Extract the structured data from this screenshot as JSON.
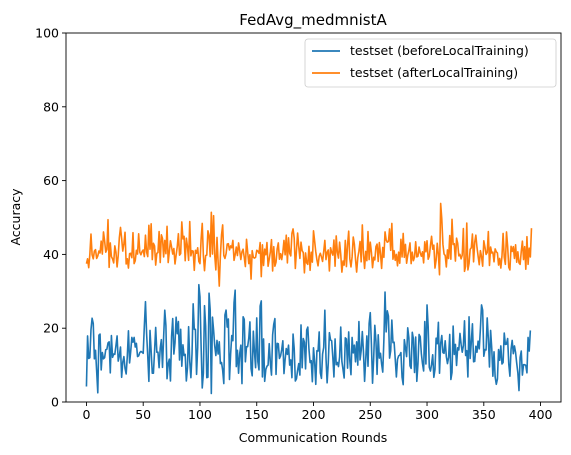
{
  "chart_data": {
    "type": "line",
    "title": "FedAvg_medmnistA",
    "xlabel": "Communication Rounds",
    "ylabel": "Accuracy",
    "xlim": [
      -18,
      418
    ],
    "ylim": [
      0,
      100
    ],
    "xticks": [
      0,
      50,
      100,
      150,
      200,
      250,
      300,
      350,
      400
    ],
    "yticks": [
      0,
      20,
      40,
      60,
      80,
      100
    ],
    "grid": false,
    "legend_position": "top-right",
    "colors": {
      "series_0": "#1f77b4",
      "series_1": "#ff7f0e",
      "axis": "#000000",
      "legend_border": "#cccccc"
    },
    "series": [
      {
        "name": "testset (beforeLocalTraining)",
        "x_start": 0,
        "x_step": 1,
        "values": [
          4.2,
          17.9,
          11.8,
          12.0,
          19.6,
          22.7,
          21.3,
          11.7,
          14.0,
          8.4,
          2.5,
          18.1,
          18.4,
          8.7,
          13.4,
          11.7,
          12.0,
          14.2,
          14.3,
          16.0,
          16.3,
          7.9,
          18.0,
          12.1,
          13.0,
          12.9,
          15.3,
          17.9,
          11.1,
          12.5,
          14.9,
          6.7,
          10.8,
          12.3,
          9.1,
          7.6,
          12.4,
          19.3,
          10.6,
          13.7,
          17.5,
          16.2,
          17.5,
          14.9,
          15.9,
          12.3,
          12.5,
          13.4,
          13.7,
          13.5,
          13.2,
          20.6,
          27.2,
          18.5,
          12.5,
          5.6,
          19.4,
          13.8,
          7.8,
          7.8,
          13.8,
          20.2,
          13.5,
          13.5,
          9.3,
          14.6,
          16.9,
          9.4,
          17.7,
          24.9,
          20.7,
          6.3,
          10.4,
          11.6,
          5.7,
          17.8,
          22.6,
          13.0,
          16.0,
          23.0,
          18.5,
          21.8,
          11.4,
          19.7,
          9.7,
          15.5,
          12.6,
          12.9,
          5.7,
          9.3,
          20.4,
          11.0,
          6.6,
          13.1,
          26.6,
          19.7,
          19.7,
          7.5,
          14.8,
          31.8,
          28.5,
          15.2,
          3.8,
          7.8,
          26.1,
          20.6,
          6.6,
          6.7,
          29.5,
          25.0,
          2.3,
          23.0,
          19.5,
          15.2,
          12.6,
          16.7,
          13.0,
          16.3,
          10.4,
          10.7,
          8.6,
          5.0,
          23.6,
          24.9,
          20.3,
          22.5,
          6.1,
          13.0,
          18.0,
          16.6,
          26.9,
          30.3,
          9.6,
          14.0,
          7.8,
          13.1,
          15.4,
          5.0,
          23.1,
          22.4,
          10.9,
          15.0,
          15.0,
          17.3,
          21.7,
          9.0,
          7.1,
          19.2,
          13.6,
          9.3,
          22.8,
          10.9,
          8.7,
          26.0,
          27.4,
          6.8,
          17.1,
          5.6,
          8.8,
          9.7,
          10.0,
          15.8,
          10.6,
          7.3,
          18.2,
          21.1,
          22.6,
          7.5,
          15.9,
          15.8,
          11.8,
          12.5,
          14.2,
          16.6,
          7.7,
          11.5,
          14.5,
          12.9,
          15.4,
          10.0,
          11.4,
          6.6,
          18.4,
          14.5,
          5.7,
          6.3,
          8.6,
          10.4,
          7.3,
          20.9,
          9.3,
          17.2,
          16.2,
          9.0,
          19.5,
          20.3,
          14.3,
          10.7,
          11.2,
          5.5,
          14.7,
          10.9,
          4.8,
          13.9,
          13.8,
          19.0,
          7.9,
          6.4,
          13.0,
          14.8,
          24.9,
          12.0,
          5.2,
          10.5,
          18.8,
          16.8,
          16.6,
          12.2,
          6.8,
          17.1,
          10.1,
          10.7,
          9.6,
          12.2,
          20.3,
          11.0,
          8.8,
          6.5,
          17.4,
          17.1,
          9.2,
          19.0,
          11.1,
          7.4,
          17.5,
          13.3,
          15.4,
          10.9,
          16.3,
          10.0,
          21.8,
          11.4,
          13.9,
          19.1,
          13.7,
          5.6,
          11.5,
          17.9,
          9.7,
          21.3,
          24.2,
          15.8,
          5.1,
          11.8,
          20.8,
          16.6,
          7.5,
          18.2,
          11.9,
          13.2,
          10.3,
          8.1,
          16.9,
          29.8,
          19.0,
          24.7,
          23.3,
          11.9,
          13.9,
          22.2,
          16.1,
          16.2,
          11.6,
          6.8,
          11.6,
          12.5,
          12.7,
          13.4,
          6.7,
          4.7,
          16.9,
          14.7,
          12.3,
          20.1,
          17.4,
          9.8,
          9.1,
          18.9,
          17.1,
          8.0,
          17.6,
          5.6,
          10.3,
          18.3,
          17.7,
          13.1,
          10.4,
          8.4,
          21.8,
          10.3,
          26.3,
          20.4,
          9.4,
          8.4,
          10.2,
          12.8,
          6.7,
          8.8,
          17.3,
          15.8,
          21.6,
          7.8,
          15.9,
          18.0,
          13.4,
          13.2,
          16.6,
          12.3,
          10.4,
          12.1,
          18.3,
          6.1,
          8.0,
          20.6,
          12.9,
          15.6,
          9.9,
          14.7,
          14.1,
          18.6,
          15.7,
          13.5,
          15.2,
          22.0,
          12.6,
          13.9,
          6.8,
          23.1,
          11.8,
          16.3,
          21.2,
          10.9,
          11.0,
          15.1,
          13.5,
          16.5,
          14.4,
          19.8,
          26.3,
          24.9,
          12.4,
          14.2,
          14.1,
          22.8,
          17.2,
          9.5,
          19.4,
          14.6,
          7.0,
          13.6,
          6.8,
          4.8,
          6.2,
          14.2,
          11.3,
          15.2,
          10.3,
          10.7,
          18.7,
          15.6,
          15.7,
          17.2,
          10.2,
          7.0,
          14.3,
          16.7,
          13.1,
          15.2,
          13.4,
          10.5,
          7.9,
          3.1,
          12.1,
          13.8,
          7.3,
          10.1,
          10.1,
          9.9,
          7.9,
          17.5,
          13.8,
          19.4
        ]
      },
      {
        "name": "testset (afterLocalTraining)",
        "x_start": 0,
        "x_step": 1,
        "values": [
          37.5,
          38.8,
          36.4,
          40.0,
          45.5,
          39.9,
          38.8,
          40.9,
          41.3,
          38.9,
          39.6,
          40.9,
          40.4,
          43.6,
          40.1,
          46.1,
          43.7,
          40.6,
          41.3,
          49.4,
          36.5,
          43.1,
          39.4,
          38.8,
          37.7,
          42.3,
          40.6,
          36.6,
          39.7,
          44.6,
          47.3,
          44.4,
          40.9,
          42.9,
          46.0,
          37.4,
          38.8,
          36.3,
          40.2,
          40.3,
          39.1,
          45.9,
          37.5,
          38.3,
          41.1,
          40.1,
          45.6,
          40.6,
          39.9,
          40.8,
          41.2,
          39.4,
          45.2,
          40.6,
          39.4,
          47.9,
          41.4,
          48.3,
          38.6,
          43.0,
          42.3,
          37.1,
          40.3,
          40.5,
          46.2,
          37.8,
          45.3,
          44.3,
          39.3,
          43.8,
          40.2,
          47.6,
          37.8,
          40.7,
          43.7,
          42.0,
          40.1,
          41.6,
          37.4,
          39.8,
          42.1,
          45.6,
          39.8,
          40.2,
          48.8,
          44.2,
          44.9,
          38.3,
          44.4,
          42.1,
          38.4,
          48.9,
          39.6,
          41.0,
          40.9,
          35.7,
          41.1,
          40.3,
          41.8,
          38.1,
          37.5,
          44.1,
          48.4,
          39.7,
          35.6,
          39.7,
          39.8,
          46.4,
          45.2,
          39.4,
          51.4,
          40.1,
          50.5,
          39.7,
          35.8,
          44.6,
          37.8,
          31.4,
          39.7,
          45.3,
          48.0,
          39.7,
          38.9,
          40.2,
          42.8,
          42.9,
          41.2,
          42.3,
          41.8,
          43.8,
          38.4,
          39.9,
          42.0,
          39.7,
          43.1,
          41.0,
          38.6,
          40.7,
          41.4,
          39.2,
          36.7,
          44.1,
          40.7,
          37.5,
          39.9,
          33.3,
          41.0,
          39.2,
          39.0,
          39.2,
          41.1,
          40.9,
          40.3,
          43.2,
          34.0,
          42.6,
          37.0,
          41.4,
          39.9,
          43.2,
          36.8,
          38.7,
          40.7,
          44.0,
          35.5,
          42.1,
          36.8,
          37.9,
          41.5,
          43.1,
          38.7,
          40.2,
          38.6,
          40.6,
          43.8,
          39.9,
          45.2,
          37.7,
          44.5,
          40.3,
          39.6,
          45.7,
          46.9,
          44.4,
          36.2,
          41.1,
          45.8,
          42.1,
          38.9,
          43.3,
          41.0,
          40.5,
          35.0,
          40.4,
          37.7,
          37.3,
          42.2,
          35.7,
          40.6,
          37.9,
          46.4,
          43.6,
          40.7,
          38.5,
          36.9,
          39.5,
          40.3,
          39.3,
          38.1,
          40.8,
          43.8,
          38.6,
          40.6,
          41.2,
          35.5,
          41.8,
          40.6,
          39.8,
          43.9,
          36.8,
          45.0,
          40.6,
          39.0,
          43.3,
          40.0,
          35.2,
          38.2,
          37.1,
          43.8,
          36.7,
          42.6,
          46.3,
          38.8,
          36.6,
          39.3,
          44.7,
          42.8,
          38.7,
          35.2,
          39.1,
          40.9,
          43.5,
          38.0,
          48.0,
          40.2,
          36.2,
          40.8,
          38.3,
          46.2,
          38.6,
          43.3,
          40.6,
          36.4,
          39.2,
          38.5,
          42.1,
          42.8,
          38.1,
          43.2,
          40.2,
          36.2,
          41.9,
          39.2,
          46.1,
          43.9,
          43.3,
          43.5,
          46.9,
          41.1,
          48.4,
          38.7,
          41.0,
          38.4,
          40.0,
          36.9,
          40.6,
          37.6,
          44.1,
          39.3,
          45.7,
          39.2,
          42.7,
          37.6,
          39.7,
          41.1,
          43.1,
          37.5,
          40.6,
          38.3,
          39.3,
          43.4,
          39.3,
          39.5,
          42.0,
          40.4,
          39.5,
          40.7,
          37.7,
          43.4,
          40.7,
          43.7,
          38.7,
          39.5,
          42.4,
          44.9,
          41.4,
          42.5,
          36.3,
          38.4,
          43.0,
          39.9,
          34.5,
          53.8,
          49.6,
          42.7,
          40.1,
          39.7,
          36.6,
          41.2,
          38.9,
          45.1,
          38.7,
          49.5,
          42.7,
          42.9,
          38.2,
          44.4,
          43.0,
          39.6,
          40.0,
          38.8,
          39.8,
          47.0,
          35.4,
          36.8,
          48.5,
          35.8,
          37.5,
          41.4,
          41.8,
          45.5,
          38.0,
          43.3,
          45.2,
          41.9,
          39.5,
          37.2,
          41.0,
          39.4,
          36.8,
          43.7,
          42.0,
          40.0,
          40.5,
          46.2,
          37.0,
          42.0,
          40.4,
          40.6,
          38.0,
          41.5,
          40.7,
          40.4,
          37.1,
          38.9,
          36.3,
          39.5,
          45.7,
          39.2,
          37.3,
          46.1,
          42.2,
          36.5,
          35.8,
          42.2,
          40.8,
          42.1,
          38.9,
          42.6,
          37.9,
          40.7,
          37.7,
          37.3,
          40.8,
          43.6,
          38.6,
          42.1,
          36.0,
          44.8,
          37.3,
          41.7,
          39.3,
          47.1
        ]
      }
    ]
  }
}
